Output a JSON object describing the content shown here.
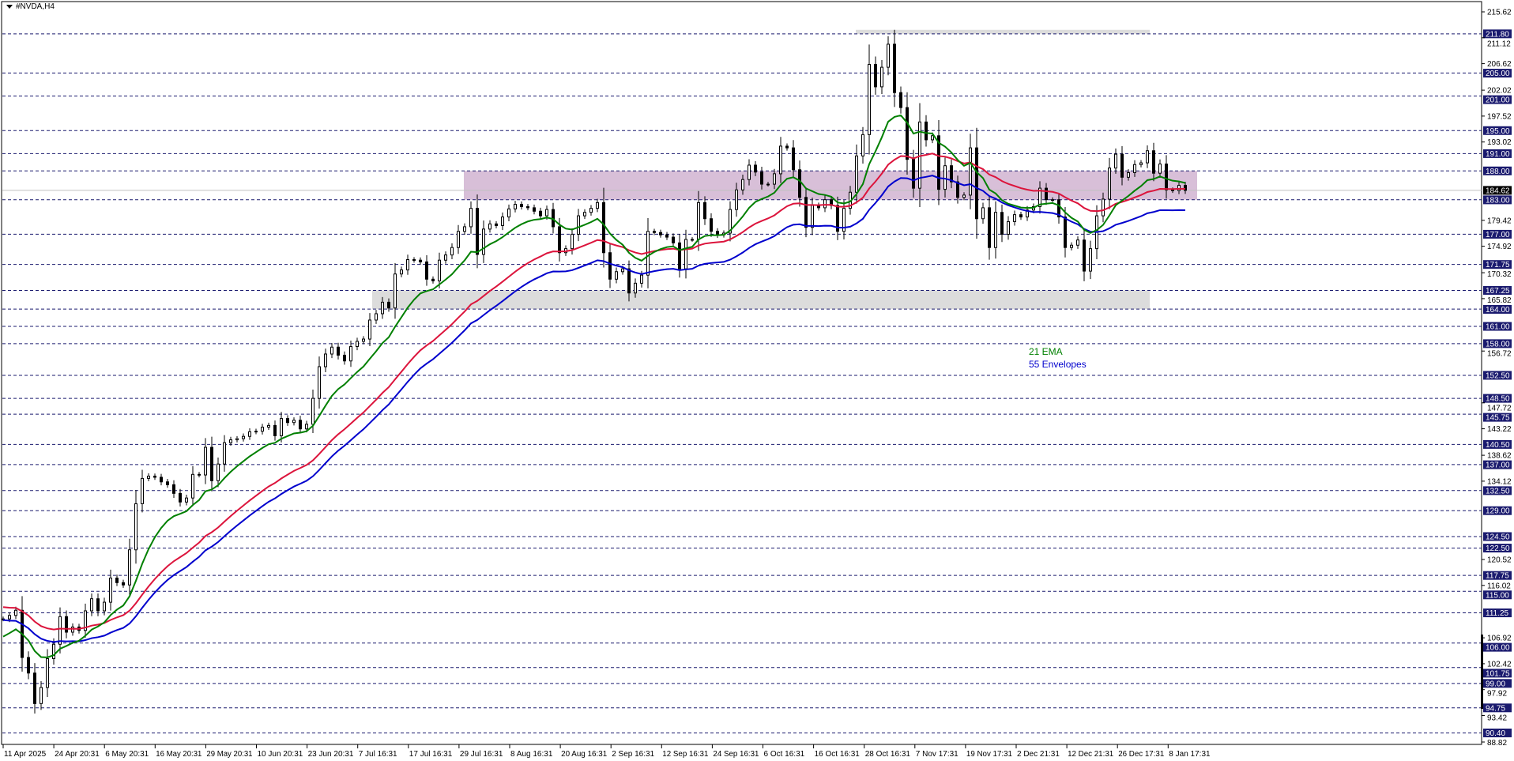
{
  "symbol_title": "#NVDA,H4",
  "legend": {
    "ema": "21 EMA",
    "envelopes": "55 Envelopes"
  },
  "colors": {
    "ema": "#008000",
    "ma": "#dc143c",
    "envelope": "#0000cd",
    "level_line": "#1a1a6e",
    "level_label_bg": "#1a1a6e",
    "resistance_zone": "#d8bfd8",
    "support_zone": "#dcdcdc",
    "current_price_bg": "#000000"
  },
  "chart_data": {
    "type": "candlestick",
    "title": "#NVDA,H4",
    "ylim": [
      88.82,
      215.62
    ],
    "grid": false,
    "x_tick_labels": [
      "11 Apr 2025",
      "24 Apr 20:31",
      "6 May 20:31",
      "16 May 20:31",
      "29 May 20:31",
      "10 Jun 20:31",
      "23 Jun 20:31",
      "7 Jul 16:31",
      "17 Jul 16:31",
      "29 Jul 16:31",
      "8 Aug 16:31",
      "20 Aug 16:31",
      "2 Sep 16:31",
      "12 Sep 16:31",
      "24 Sep 16:31",
      "6 Oct 16:31",
      "16 Oct 16:31",
      "28 Oct 16:31",
      "7 Nov 17:31",
      "19 Nov 17:31",
      "2 Dec 21:31",
      "12 Dec 21:31",
      "26 Dec 17:31",
      "8 Jan 17:31"
    ],
    "y_tick_labels": [
      "215.62",
      "211.12",
      "206.62",
      "202.02",
      "197.52",
      "193.02",
      "179.42",
      "174.92",
      "170.32",
      "165.82",
      "156.72",
      "147.72",
      "143.22",
      "138.62",
      "134.12",
      "120.52",
      "116.02",
      "106.92",
      "102.42",
      "97.92",
      "93.42",
      "88.82"
    ],
    "current_price": "184.62",
    "horizontal_levels": [
      "211.80",
      "205.00",
      "201.00",
      "195.00",
      "191.00",
      "188.00",
      "183.00",
      "177.00",
      "171.75",
      "167.25",
      "164.00",
      "161.00",
      "158.00",
      "152.50",
      "148.50",
      "145.75",
      "140.50",
      "137.00",
      "132.50",
      "129.00",
      "124.50",
      "122.50",
      "117.75",
      "115.00",
      "111.25",
      "106.00",
      "101.75",
      "99.00",
      "94.75",
      "90.40"
    ],
    "zones": [
      {
        "kind": "resistance",
        "from": 183.0,
        "to": 188.0
      },
      {
        "kind": "support",
        "from": 164.0,
        "to": 167.25
      },
      {
        "kind": "top",
        "from": 211.8,
        "to": 212.5
      }
    ],
    "closes": [
      110.2,
      110.8,
      111.7,
      103.5,
      100.8,
      95.5,
      98.3,
      103.3,
      105.8,
      110.6,
      107.9,
      108.8,
      108.2,
      111.6,
      113.7,
      111.6,
      113.1,
      117.3,
      116.5,
      116.1,
      122.2,
      130.2,
      134.6,
      135,
      134.8,
      134,
      133.5,
      132,
      130.5,
      131.2,
      135.3,
      135.2,
      140,
      134.2,
      137.1,
      140.8,
      141.3,
      141.5,
      141.9,
      142.7,
      142.8,
      143.5,
      143.8,
      142,
      145,
      144.3,
      144.7,
      143.2,
      144,
      148.5,
      154,
      156.2,
      157.4,
      156,
      155,
      157.5,
      158.4,
      158.8,
      162.1,
      163.2,
      165.2,
      164.2,
      170.1,
      170.8,
      172.6,
      172.5,
      172.2,
      169.2,
      168.9,
      172.5,
      173.4,
      174.7,
      177.5,
      178.3,
      181.5,
      173.5,
      177.9,
      178.8,
      178.5,
      180,
      181.4,
      182.2,
      181.8,
      181.6,
      181,
      180.2,
      181.3,
      178.3,
      173.8,
      174.5,
      177,
      180.2,
      180.8,
      181.5,
      182.5,
      173.8,
      169.2,
      170.5,
      171,
      166.8,
      168.5,
      169.9,
      177.5,
      177.3,
      176.9,
      176.5,
      175.5,
      171,
      176.1,
      176.1,
      182.5,
      179.7,
      177.5,
      176.9,
      177.2,
      181.3,
      184.7,
      186.5,
      189,
      187.8,
      185.7,
      185.7,
      187.5,
      192.3,
      192,
      188.2,
      183.4,
      178.2,
      182,
      181.6,
      183,
      182,
      177.5,
      181.5,
      184.3,
      190.6,
      194.3,
      206.5,
      202.6,
      206,
      210,
      201.6,
      199,
      190,
      185,
      196.5,
      193.4,
      194.1,
      184.8,
      188.9,
      186.1,
      183.4,
      183.8,
      192,
      179.7,
      181.6,
      174.7,
      180.8,
      177,
      179.2,
      180.4,
      180,
      181.2,
      181.8,
      185,
      183,
      183,
      180,
      174.7,
      175.1,
      176,
      170.6,
      174.5,
      180.2,
      183.1,
      188.5,
      190.9,
      186.9,
      187.7,
      189.1,
      189.4,
      191.5,
      187.6,
      189.2,
      184.7,
      184.6,
      185.5,
      184.62
    ],
    "indicators": {
      "ema_21_start": 106.5,
      "ma_55_start": 112.4,
      "envelope_deviation_pct": 2
    }
  }
}
